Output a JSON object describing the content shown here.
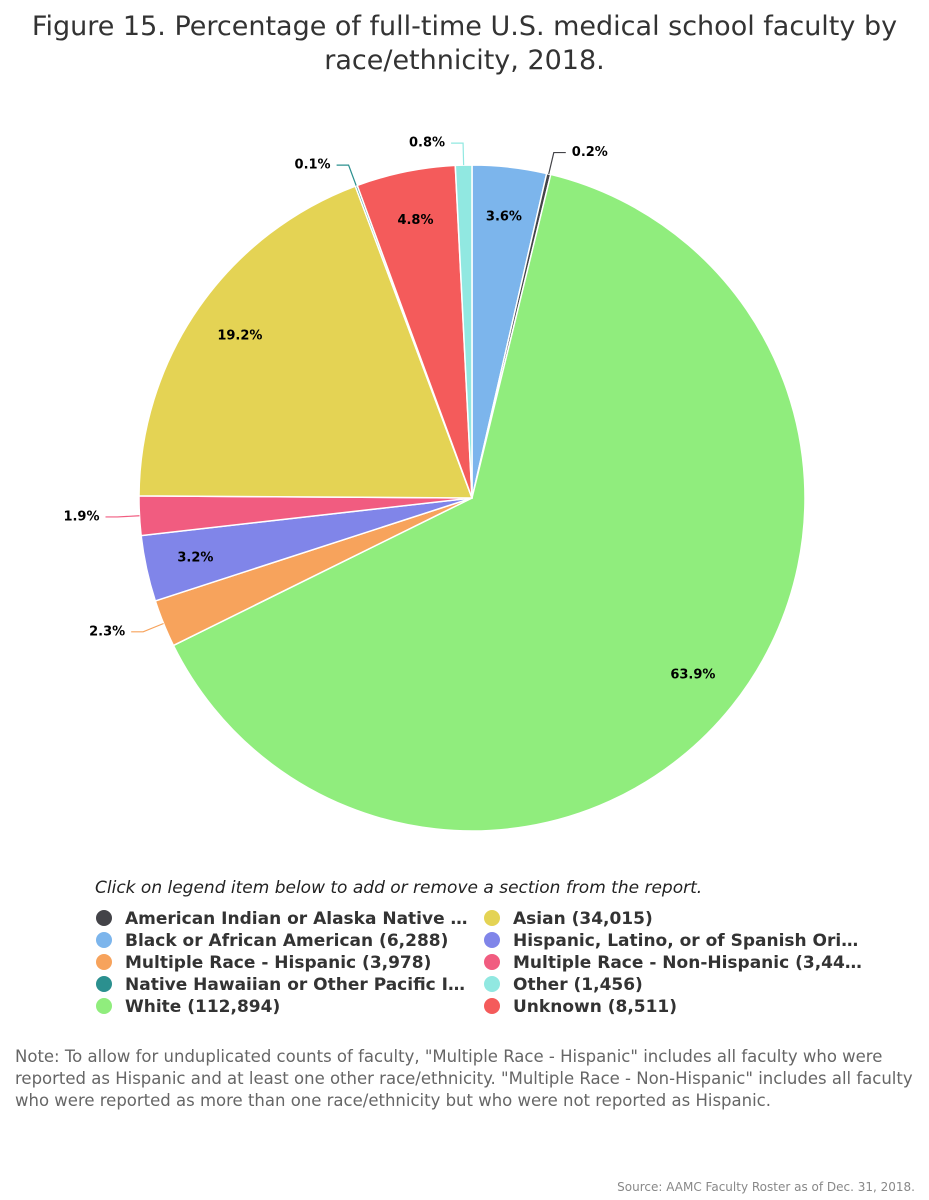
{
  "chart_data": {
    "type": "pie",
    "title": "Figure 15. Percentage of full-time U.S. medical school faculty by race/ethnicity, 2018.",
    "legend_hint": "Click on legend item below to add or remove a section from the report.",
    "categories": [
      "Black or African American (6,288)",
      "American Indian or Alaska Native …",
      "White (112,894)",
      "Multiple Race - Hispanic (3,978)",
      "Hispanic, Latino, or of Spanish Ori…",
      "Multiple Race - Non-Hispanic (3,44…",
      "Asian (34,015)",
      "Native Hawaiian or Other Pacific I…",
      "Unknown (8,511)",
      "Other (1,456)"
    ],
    "values": [
      3.6,
      0.2,
      63.9,
      2.3,
      3.2,
      1.9,
      19.2,
      0.1,
      4.8,
      0.8
    ],
    "value_labels": [
      "3.6%",
      "0.2%",
      "63.9%",
      "2.3%",
      "3.2%",
      "1.9%",
      "19.2%",
      "0.1%",
      "4.8%",
      "0.8%"
    ],
    "colors": [
      "#7cb5ec",
      "#434348",
      "#90ed7d",
      "#f7a35c",
      "#8085e9",
      "#f15c80",
      "#e4d354",
      "#2b908f",
      "#f45b5b",
      "#91e8e1"
    ],
    "note": "Note: To allow for unduplicated counts of faculty, \"Multiple Race - Hispanic\" includes all faculty who were reported as Hispanic and at least one other race/ethnicity. \"Multiple Race - Non-Hispanic\" includes all faculty who were reported as more than one race/ethnicity but who were not reported as Hispanic.",
    "source": "Source: AAMC Faculty Roster as of Dec. 31, 2018."
  }
}
